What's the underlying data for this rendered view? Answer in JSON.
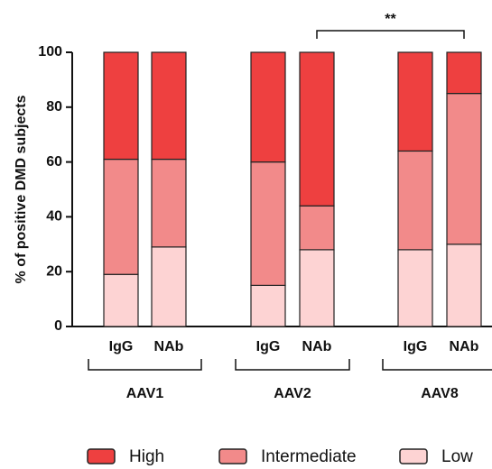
{
  "chart_data": {
    "type": "stacked-bar",
    "y_label": "% of positive DMD subjects",
    "categories": [
      "IgG",
      "NAb",
      "IgG",
      "NAb",
      "IgG",
      "NAb"
    ],
    "groups": [
      "AAV1",
      "AAV2",
      "AAV8"
    ],
    "series": [
      {
        "name": "High",
        "color": "#ee4040",
        "values": [
          39,
          39,
          40,
          56,
          36,
          15
        ]
      },
      {
        "name": "Intermediate",
        "color": "#f28a8a",
        "values": [
          42,
          32,
          45,
          16,
          36,
          55
        ]
      },
      {
        "name": "Low",
        "color": "#fdd3d3",
        "values": [
          19,
          29,
          15,
          28,
          28,
          30
        ]
      }
    ],
    "annotation": "**",
    "ylim": [
      0,
      100
    ],
    "yticks": [
      0,
      20,
      40,
      60,
      80,
      100
    ]
  }
}
